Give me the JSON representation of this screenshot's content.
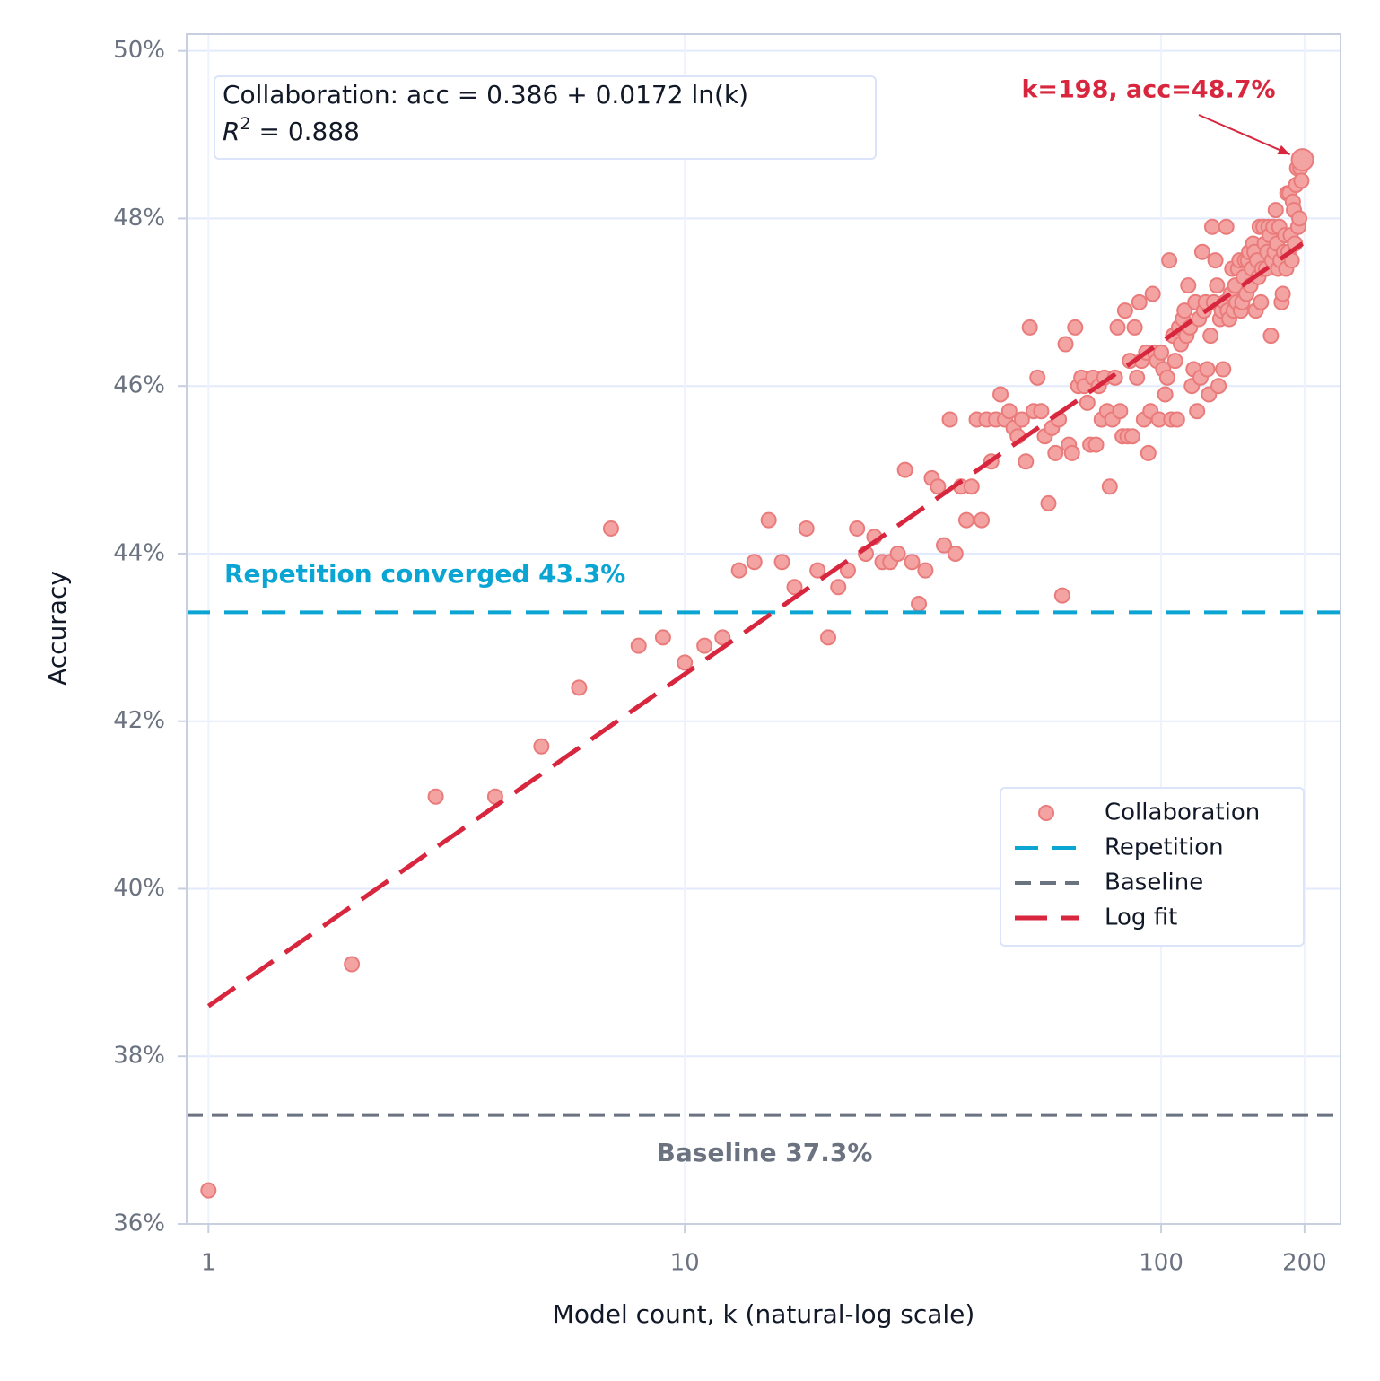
{
  "chart_data": {
    "type": "scatter",
    "x_label": "Model count, k (natural-log scale)",
    "y_label": "Accuracy",
    "x_scale": "log",
    "grid": true,
    "legend_position": "center right",
    "xlim": [
      0.9,
      238
    ],
    "xticks": [
      1,
      10,
      100,
      200
    ],
    "ylim": [
      36,
      50.2
    ],
    "yticks": [
      {
        "value": 36,
        "label": "36%"
      },
      {
        "value": 38,
        "label": "38%"
      },
      {
        "value": 40,
        "label": "40%"
      },
      {
        "value": 42,
        "label": "42%"
      },
      {
        "value": 44,
        "label": "44%"
      },
      {
        "value": 46,
        "label": "46%"
      },
      {
        "value": 48,
        "label": "48%"
      },
      {
        "value": 50,
        "label": "50%"
      }
    ],
    "fit_box": {
      "equation": "Collaboration: acc = 0.386 + 0.0172 ln(k)",
      "r2_symbol": "R",
      "r2_exponent": "2",
      "r2_text": " = 0.888"
    },
    "annotations": {
      "repetition_label": "Repetition converged 43.3%",
      "baseline_label": "Baseline 37.3%",
      "peak_label": "k=198, acc=48.7%"
    },
    "series": [
      {
        "name": "Collaboration",
        "type": "scatter",
        "color": "#f4a3a3",
        "edge_color": "#ea7b7b",
        "x": [
          1,
          2,
          3,
          4,
          5,
          6,
          7,
          8,
          9,
          10,
          11,
          12,
          13,
          14,
          15,
          16,
          17,
          18,
          19,
          20,
          21,
          22,
          23,
          24,
          25,
          26,
          27,
          28,
          29,
          30,
          31,
          32,
          33,
          34,
          35,
          36,
          37,
          38,
          39,
          40,
          41,
          42,
          43,
          44,
          45,
          46,
          47,
          48,
          49,
          50,
          51,
          52,
          53,
          54,
          55,
          56,
          57,
          58,
          59,
          60,
          61,
          62,
          63,
          64,
          65,
          66,
          67,
          68,
          69,
          70,
          71,
          72,
          73,
          74,
          75,
          76,
          77,
          78,
          79,
          80,
          81,
          82,
          83,
          84,
          85,
          86,
          87,
          88,
          89,
          90,
          91,
          92,
          93,
          94,
          95,
          96,
          97,
          98,
          99,
          100,
          101,
          102,
          103,
          104,
          105,
          106,
          107,
          108,
          109,
          110,
          111,
          112,
          113,
          114,
          115,
          116,
          117,
          118,
          119,
          120,
          121,
          122,
          123,
          124,
          125,
          126,
          127,
          128,
          129,
          130,
          131,
          132,
          133,
          134,
          135,
          136,
          137,
          138,
          139,
          140,
          141,
          142,
          143,
          144,
          145,
          146,
          147,
          148,
          149,
          150,
          151,
          152,
          153,
          154,
          155,
          156,
          157,
          158,
          159,
          160,
          161,
          162,
          163,
          164,
          165,
          166,
          167,
          168,
          169,
          170,
          171,
          172,
          173,
          174,
          175,
          176,
          177,
          178,
          179,
          180,
          181,
          182,
          183,
          184,
          185,
          186,
          187,
          188,
          189,
          190,
          191,
          192,
          193,
          194,
          195,
          196,
          197,
          198
        ],
        "values": [
          36.4,
          39.1,
          41.1,
          41.1,
          41.7,
          42.4,
          44.3,
          42.9,
          43.0,
          42.7,
          42.9,
          43.0,
          43.8,
          43.9,
          44.4,
          43.9,
          43.6,
          44.3,
          43.8,
          43.0,
          43.6,
          43.8,
          44.3,
          44.0,
          44.2,
          43.9,
          43.9,
          44.0,
          45.0,
          43.9,
          43.4,
          43.8,
          44.9,
          44.8,
          44.1,
          45.6,
          44.0,
          44.8,
          44.4,
          44.8,
          45.6,
          44.4,
          45.6,
          45.1,
          45.6,
          45.9,
          45.6,
          45.7,
          45.5,
          45.4,
          45.6,
          45.1,
          46.7,
          45.7,
          46.1,
          45.7,
          45.4,
          44.6,
          45.5,
          45.2,
          45.6,
          43.5,
          46.5,
          45.3,
          45.2,
          46.7,
          46.0,
          46.1,
          46.0,
          45.8,
          45.3,
          46.1,
          45.3,
          46.0,
          45.6,
          46.1,
          45.7,
          44.8,
          45.6,
          46.1,
          46.7,
          45.7,
          45.4,
          46.9,
          45.4,
          46.3,
          45.4,
          46.7,
          46.1,
          47.0,
          46.3,
          45.6,
          46.4,
          45.2,
          45.7,
          47.1,
          46.4,
          46.3,
          45.6,
          46.4,
          46.2,
          45.9,
          46.1,
          47.5,
          45.6,
          46.6,
          46.3,
          45.6,
          46.7,
          46.5,
          46.8,
          46.9,
          46.6,
          47.2,
          46.7,
          46.0,
          46.2,
          47.0,
          45.7,
          46.8,
          46.1,
          47.6,
          46.9,
          47.0,
          46.2,
          45.9,
          46.6,
          47.9,
          47.0,
          47.5,
          47.2,
          46.0,
          46.8,
          46.9,
          46.2,
          47.0,
          47.9,
          46.9,
          46.8,
          47.1,
          47.4,
          46.9,
          47.2,
          47.0,
          47.4,
          47.5,
          46.9,
          47.0,
          47.3,
          47.5,
          47.1,
          47.5,
          47.6,
          47.2,
          47.4,
          47.7,
          47.6,
          46.9,
          47.5,
          47.3,
          47.9,
          47.0,
          47.4,
          47.9,
          47.7,
          47.4,
          47.6,
          47.9,
          47.8,
          46.6,
          47.5,
          47.9,
          47.6,
          48.1,
          47.7,
          47.4,
          47.9,
          47.5,
          47.0,
          47.1,
          47.6,
          47.8,
          47.4,
          48.3,
          47.6,
          48.3,
          47.8,
          47.5,
          48.2,
          48.1,
          47.7,
          48.4,
          48.6,
          47.9,
          48.0,
          48.6,
          48.45,
          48.7
        ]
      },
      {
        "name": "Repetition",
        "type": "hline",
        "color": "#0aa5d3",
        "value": 43.3
      },
      {
        "name": "Baseline",
        "type": "hline",
        "color": "#6b7280",
        "value": 37.3
      },
      {
        "name": "Log fit",
        "type": "line",
        "color": "#d7263d",
        "x": [
          1,
          198
        ],
        "values": [
          38.6,
          47.7
        ]
      }
    ]
  }
}
